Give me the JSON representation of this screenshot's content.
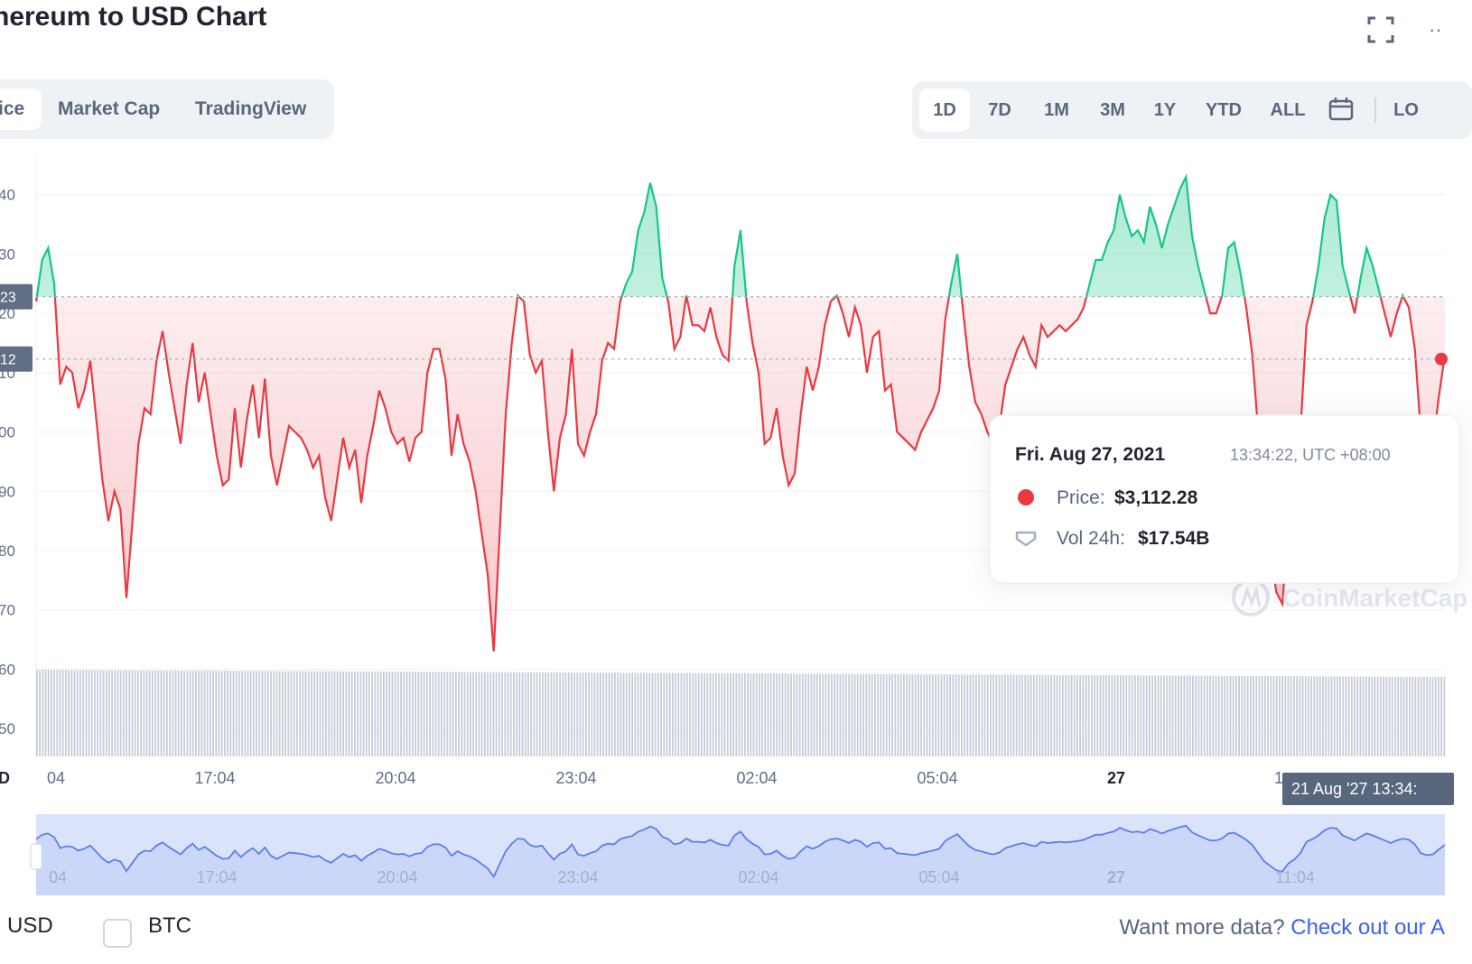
{
  "title": "hereum to USD Chart",
  "tabs": [
    {
      "label": "ice",
      "active": true
    },
    {
      "label": "Market Cap",
      "active": false
    },
    {
      "label": "TradingView",
      "active": false
    }
  ],
  "ranges": [
    {
      "label": "1D",
      "active": true
    },
    {
      "label": "7D",
      "active": false
    },
    {
      "label": "1M",
      "active": false
    },
    {
      "label": "3M",
      "active": false
    },
    {
      "label": "1Y",
      "active": false
    },
    {
      "label": "YTD",
      "active": false
    },
    {
      "label": "ALL",
      "active": false
    },
    {
      "label": "calendar-icon",
      "active": false
    },
    {
      "label": "LO",
      "active": false
    }
  ],
  "tooltip": {
    "date": "Fri. Aug 27, 2021",
    "time": "13:34:22, UTC +08:00",
    "price_label": "Price:",
    "price_value": "$3,112.28",
    "vol_label": "Vol 24h:",
    "vol_value": "$17.54B"
  },
  "watermark": "CoinMarketCap",
  "crosshair_label": "21 Aug '27 13:34:",
  "footer": {
    "usd": "USD",
    "btc": "BTC",
    "more_text": "Want more data?",
    "more_link": "Check out our A"
  },
  "colors": {
    "up": "#16c784",
    "down": "#ea3943",
    "volume": "#c7cdd8",
    "nav_fill": "#dbe3fb",
    "nav_line": "#5b7ee8"
  },
  "chart_data": {
    "type": "line",
    "title": "hereum to USD Chart",
    "xlabel": "",
    "ylabel": "",
    "x_ticks": [
      "04",
      "17:04",
      "20:04",
      "23:04",
      "02:04",
      "05:04",
      "27",
      "1"
    ],
    "y_ticks": [
      "40",
      "30",
      "20",
      "10",
      "00",
      "90",
      "80",
      "70",
      "60",
      "50"
    ],
    "y_tick_values": [
      3140,
      3130,
      3120,
      3110,
      3100,
      3090,
      3080,
      3070,
      3060,
      3050
    ],
    "ylim": [
      3045,
      3150
    ],
    "baseline": 3122.8,
    "baseline_label": "23",
    "current_price": 3112.3,
    "current_label": "12",
    "axis_corner_label": "D",
    "navigator_ticks": [
      "04",
      "17:04",
      "20:04",
      "23:04",
      "02:04",
      "05:04",
      "27",
      "11:04"
    ],
    "series": [
      {
        "name": "Price",
        "values": [
          3122,
          3129,
          3131,
          3125,
          3108,
          3111,
          3110,
          3104,
          3107,
          3112,
          3102,
          3092,
          3085,
          3090,
          3087,
          3072,
          3085,
          3098,
          3104,
          3103,
          3112,
          3117,
          3110,
          3104,
          3098,
          3108,
          3115,
          3105,
          3110,
          3103,
          3096,
          3091,
          3092,
          3104,
          3094,
          3102,
          3108,
          3099,
          3109,
          3096,
          3091,
          3096,
          3101,
          3100,
          3099,
          3097,
          3094,
          3096,
          3089,
          3085,
          3092,
          3099,
          3094,
          3097,
          3088,
          3096,
          3101,
          3107,
          3104,
          3100,
          3098,
          3099,
          3095,
          3099,
          3100,
          3110,
          3114,
          3114,
          3109,
          3096,
          3103,
          3098,
          3095,
          3090,
          3083,
          3076,
          3063,
          3083,
          3103,
          3115,
          3123,
          3122,
          3113,
          3110,
          3112,
          3100,
          3090,
          3099,
          3103,
          3114,
          3098,
          3096,
          3100,
          3103,
          3112,
          3115,
          3114,
          3122,
          3125,
          3127,
          3134,
          3137,
          3142,
          3138,
          3126,
          3122,
          3114,
          3116,
          3123,
          3118,
          3118,
          3117,
          3121,
          3116,
          3113,
          3112,
          3128,
          3134,
          3122,
          3115,
          3110,
          3098,
          3099,
          3104,
          3096,
          3091,
          3093,
          3103,
          3111,
          3107,
          3111,
          3118,
          3122,
          3123,
          3120,
          3116,
          3121,
          3118,
          3110,
          3116,
          3117,
          3107,
          3108,
          3100,
          3099,
          3098,
          3097,
          3100,
          3102,
          3104,
          3107,
          3119,
          3125,
          3130,
          3120,
          3111,
          3105,
          3103,
          3100,
          3098,
          3101,
          3108,
          3111,
          3114,
          3116,
          3113,
          3111,
          3118,
          3116,
          3117,
          3118,
          3117,
          3118,
          3119,
          3121,
          3125,
          3129,
          3129,
          3132,
          3134,
          3140,
          3136,
          3133,
          3134,
          3132,
          3138,
          3135,
          3131,
          3135,
          3138,
          3141,
          3143,
          3133,
          3128,
          3124,
          3120,
          3120,
          3123,
          3131,
          3132,
          3127,
          3121,
          3113,
          3100,
          3087,
          3080,
          3073,
          3071,
          3084,
          3090,
          3100,
          3118,
          3122,
          3128,
          3136,
          3140,
          3139,
          3128,
          3124,
          3120,
          3126,
          3131,
          3128,
          3124,
          3120,
          3116,
          3120,
          3123,
          3121,
          3114,
          3100,
          3097,
          3098,
          3106,
          3113
        ]
      }
    ]
  }
}
